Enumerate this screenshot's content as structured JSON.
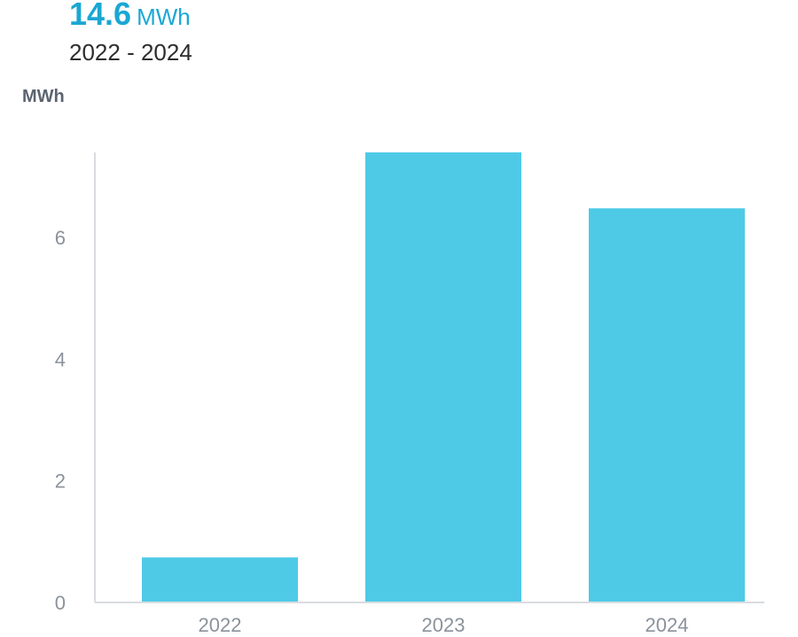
{
  "summary": {
    "total_value": "14.6",
    "total_unit": "MWh",
    "period": "2022 - 2024"
  },
  "colors": {
    "accent": "#1aa7d4",
    "bar": "#4ecae7",
    "axis": "#d9dce0",
    "tick_text": "#8b929b"
  },
  "chart_data": {
    "type": "bar",
    "title": "",
    "xlabel": "",
    "ylabel": "MWh",
    "categories": [
      "2022",
      "2023",
      "2024"
    ],
    "values": [
      0.74,
      7.4,
      6.48
    ],
    "ylim": [
      0,
      7.4
    ],
    "yticks": [
      0,
      2,
      4,
      6
    ],
    "grid": false,
    "legend": "none"
  }
}
